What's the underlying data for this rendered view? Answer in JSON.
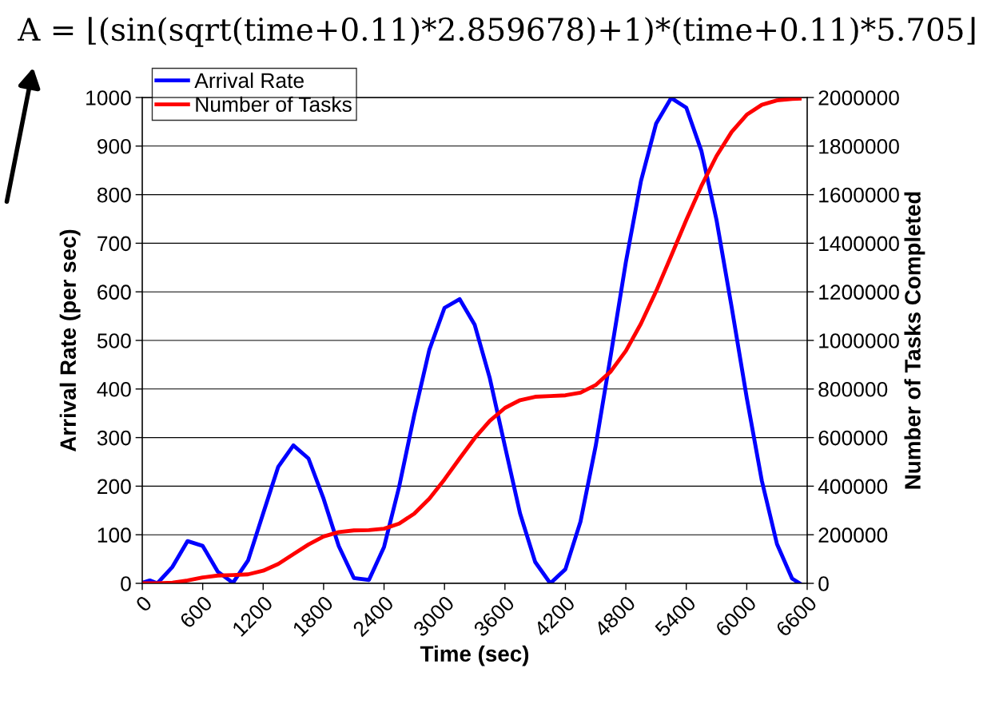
{
  "chart_data": {
    "type": "line",
    "title": "A = ⌊(sin(sqrt(time+0.11)*2.859678)+1)*(time+0.11)*5.705⌋",
    "xlabel": "Time (sec)",
    "ylabel": "Arrival Rate (per sec)",
    "y2label": "Number of Tasks Completed",
    "x": [
      0,
      75,
      150,
      300,
      450,
      600,
      750,
      900,
      1050,
      1200,
      1350,
      1500,
      1650,
      1800,
      1950,
      2100,
      2250,
      2400,
      2550,
      2700,
      2850,
      3000,
      3150,
      3300,
      3450,
      3600,
      3750,
      3900,
      4050,
      4200,
      4350,
      4500,
      4650,
      4800,
      4950,
      5100,
      5250,
      5400,
      5550,
      5700,
      5850,
      6000,
      6150,
      6300,
      6450,
      6525
    ],
    "series": [
      {
        "name": "Arrival Rate",
        "color": "#0000ff",
        "values": [
          1,
          6,
          0,
          34,
          87,
          77,
          24,
          1,
          47,
          144,
          240,
          284,
          257,
          174,
          77,
          11,
          7,
          75,
          199,
          347,
          481,
          567,
          585,
          532,
          422,
          282,
          144,
          44,
          0,
          29,
          127,
          282,
          469,
          661,
          828,
          946,
          999,
          979,
          890,
          748,
          569,
          382,
          211,
          81,
          10,
          0
        ]
      },
      {
        "name": "Number of Tasks",
        "color": "#ff0000",
        "axis": "y2",
        "values": [
          0,
          0,
          0,
          3000,
          12000,
          24000,
          32000,
          34000,
          37000,
          52000,
          80000,
          120000,
          160000,
          193000,
          211000,
          218000,
          219000,
          225000,
          246000,
          287000,
          349000,
          428000,
          514000,
          598000,
          669000,
          722000,
          754000,
          768000,
          771000,
          774000,
          785000,
          816000,
          872000,
          957000,
          1069000,
          1202000,
          1348000,
          1496000,
          1636000,
          1759000,
          1858000,
          1929000,
          1970000,
          1988000,
          1994000,
          1995000
        ]
      }
    ],
    "xlim": [
      0,
      6600
    ],
    "xticks": [
      0,
      600,
      1200,
      1800,
      2400,
      3000,
      3600,
      4200,
      4800,
      5400,
      6000,
      6600
    ],
    "ylim": [
      0,
      1000
    ],
    "yticks": [
      0,
      100,
      200,
      300,
      400,
      500,
      600,
      700,
      800,
      900,
      1000
    ],
    "y2lim": [
      0,
      2000000
    ],
    "y2ticks": [
      0,
      200000,
      400000,
      600000,
      800000,
      1000000,
      1200000,
      1400000,
      1600000,
      1800000,
      2000000
    ],
    "grid": "y",
    "legend": "top left",
    "line_style": "solid",
    "marker": "none"
  }
}
